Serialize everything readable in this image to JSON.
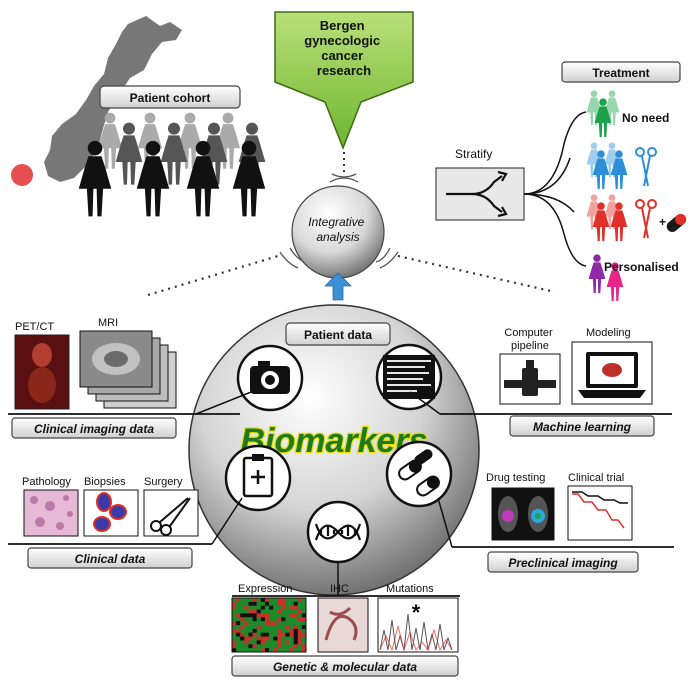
{
  "colors": {
    "green_box": "#7bbf3a",
    "green_box_light": "#b9e07a",
    "arrow_blue": "#3f8fd6",
    "biomarkers_green": "#1f7a1f",
    "biomarkers_yellow": "#e8e000",
    "norway": "#777777",
    "highlight_red": "#e03030",
    "person_green": "#1aa34a",
    "person_blue": "#2d8fd8",
    "person_red": "#e0302a",
    "person_purple": "#8e2aa8",
    "person_pink": "#e8268a"
  },
  "header": {
    "lines": [
      "Bergen",
      "gynecologic",
      "cancer",
      "research"
    ]
  },
  "patient_cohort": {
    "label": "Patient cohort"
  },
  "center": {
    "analysis_lines": [
      "Integrative",
      "analysis"
    ],
    "patient_data": "Patient data",
    "title": "Biomarkers"
  },
  "treatment": {
    "title": "Treatment",
    "stratify": "Stratify",
    "no_need": "No need",
    "personalised": "Personalised",
    "plus": "+"
  },
  "imaging": {
    "petct": "PET/CT",
    "mri": "MRI",
    "caption": "Clinical imaging data"
  },
  "machine_learning": {
    "computer_pipeline_lines": [
      "Computer",
      "pipeline"
    ],
    "modeling": "Modeling",
    "caption": "Machine learning"
  },
  "clinical": {
    "pathology": "Pathology",
    "biopsies": "Biopsies",
    "surgery": "Surgery",
    "caption": "Clinical data"
  },
  "preclinical": {
    "drug_testing": "Drug testing",
    "clinical_trial": "Clinical trial",
    "caption": "Preclinical imaging"
  },
  "genetic": {
    "expression": "Expression",
    "ihc": "IHC",
    "mutations": "Mutations",
    "asterisk": "*",
    "caption": "Genetic & molecular data"
  },
  "icons": [
    "camera-icon",
    "code-screen-icon",
    "clipboard-icon",
    "dna-icon",
    "pills-icon"
  ]
}
